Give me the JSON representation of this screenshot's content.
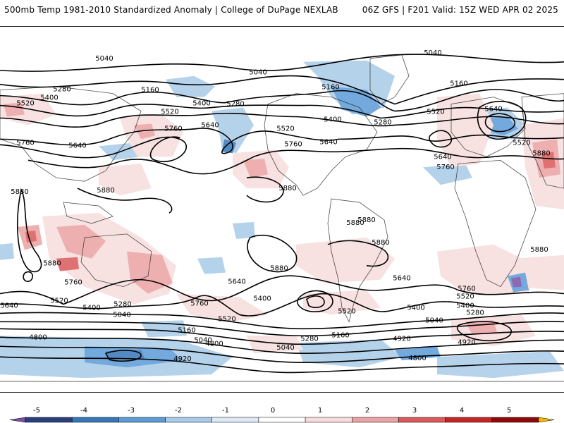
{
  "header": {
    "left": "500mb Temp 1981-2010 Standardized Anomaly | College of DuPage NEXLAB",
    "right": "06Z GFS | F201 Valid: 15Z WED APR 02 2025"
  },
  "colorbar": {
    "ticks": [
      "-5",
      "-4",
      "-3",
      "-2",
      "-1",
      "0",
      "1",
      "2",
      "3",
      "4",
      "5"
    ],
    "colors": [
      "#7b4fa6",
      "#2b3f7a",
      "#3776b8",
      "#5b9bd6",
      "#a9cbe8",
      "#ddeaf5",
      "#ffffff",
      "#f6dcdc",
      "#eaa2a2",
      "#d95a5a",
      "#c42424",
      "#8c0a0a",
      "#f5b800"
    ]
  },
  "contour_labels": [
    "5040",
    "5040",
    "5040",
    "5280",
    "5160",
    "5400",
    "5160",
    "5520",
    "5520",
    "5400",
    "5280",
    "5640",
    "5760",
    "5640",
    "5760",
    "5160",
    "5520",
    "5520",
    "5400",
    "5280",
    "5640",
    "5520",
    "5640",
    "5760",
    "5880",
    "5880",
    "5880",
    "5880",
    "5880",
    "5880",
    "5880",
    "5760",
    "5880",
    "5640",
    "5640",
    "5640",
    "5760",
    "5760",
    "5520",
    "5400",
    "5280",
    "5040",
    "5520",
    "5400",
    "5520",
    "5400",
    "5280",
    "5040",
    "5160",
    "5040",
    "4920",
    "5280",
    "5160",
    "4800",
    "4920",
    "4800",
    "5040",
    "4920",
    "4800",
    "5400",
    "5520",
    "5640",
    "5760",
    "5880",
    "5880"
  ]
}
